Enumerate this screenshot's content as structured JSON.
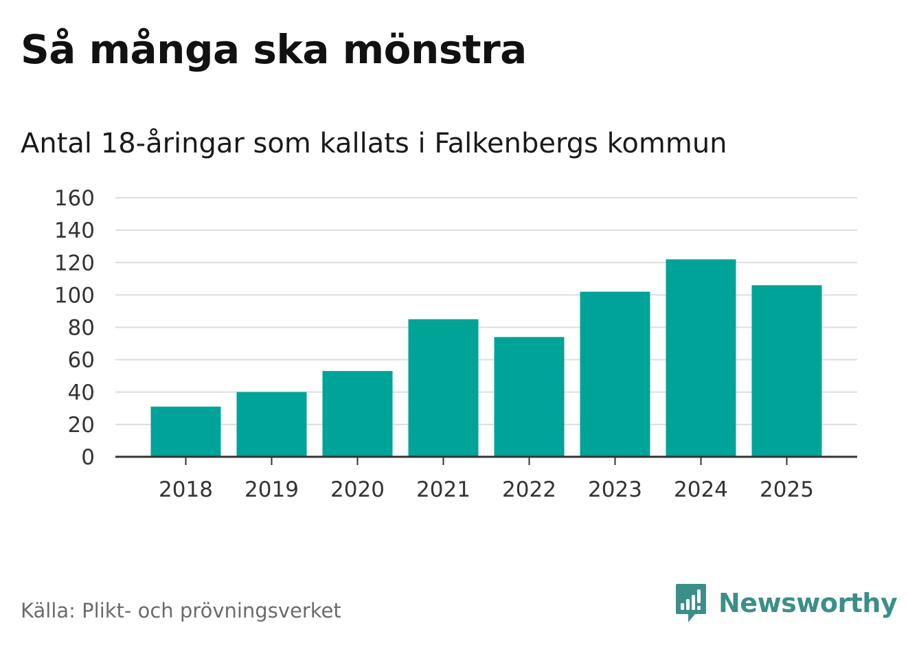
{
  "title": "Så många ska mönstra",
  "subtitle": "Antal 18-åringar som kallats i Falkenbergs kommun",
  "source": "Källa: Plikt- och prövningsverket",
  "brand": {
    "name": "Newsworthy",
    "icon": "newsworthy-logo-icon"
  },
  "colors": {
    "bar": "#00a398",
    "grid": "#dddddd",
    "axis": "#333333",
    "brand": "#3b8f88"
  },
  "chart_data": {
    "type": "bar",
    "title": "Så många ska mönstra",
    "subtitle": "Antal 18-åringar som kallats i Falkenbergs kommun",
    "xlabel": "",
    "ylabel": "",
    "categories": [
      "2018",
      "2019",
      "2020",
      "2021",
      "2022",
      "2023",
      "2024",
      "2025"
    ],
    "values": [
      31,
      40,
      53,
      85,
      74,
      102,
      122,
      106
    ],
    "ylim": [
      0,
      160
    ],
    "yticks": [
      0,
      20,
      40,
      60,
      80,
      100,
      120,
      140,
      160
    ],
    "ytick_labels": [
      "0",
      "20",
      "40",
      "60",
      "80",
      "100",
      "120",
      "140",
      "160"
    ],
    "grid": true,
    "legend": "none"
  }
}
